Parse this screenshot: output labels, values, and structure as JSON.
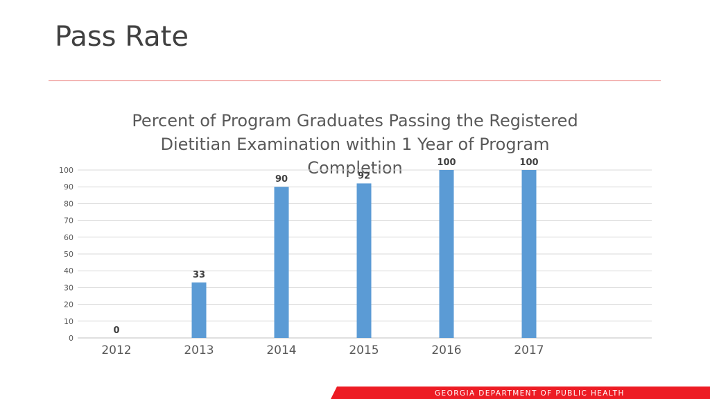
{
  "slide": {
    "title": "Pass Rate",
    "footer": "GEORGIA DEPARTMENT OF PUBLIC HEALTH"
  },
  "colors": {
    "bar": "#5b9bd5",
    "accent": "#ed1c24",
    "rule": "#e8726f",
    "title_text": "#404040"
  },
  "chart_data": {
    "type": "bar",
    "title_lines": [
      "Percent of Program Graduates Passing the Registered",
      "Dietitian Examination within 1 Year of Program",
      "Completion"
    ],
    "categories": [
      "2012",
      "2013",
      "2014",
      "2015",
      "2016",
      "2017"
    ],
    "values": [
      0,
      33,
      90,
      92,
      100,
      100
    ],
    "data_labels": [
      "0",
      "33",
      "90",
      "92",
      "100",
      "100"
    ],
    "ylim": [
      0,
      100
    ],
    "yticks": [
      "0",
      "10",
      "20",
      "30",
      "40",
      "50",
      "60",
      "70",
      "80",
      "90",
      "100"
    ],
    "grid": true,
    "legend": "none"
  }
}
